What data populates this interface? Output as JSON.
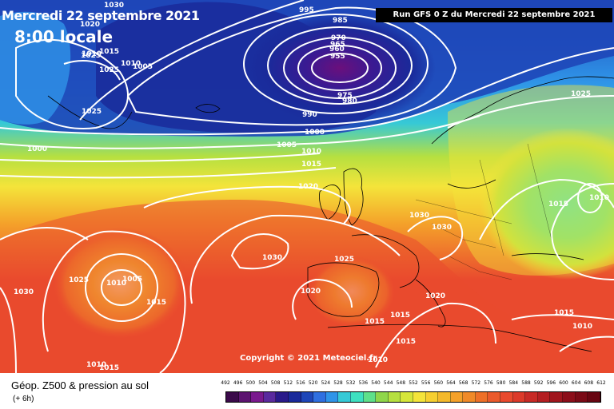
{
  "header": {
    "date_title": "Mercredi 22 septembre 2021",
    "time_title": "8:00 locale",
    "run_info": "Run GFS 0 Z du Mercredi 22 septembre 2021"
  },
  "map": {
    "copyright": "Copyright © 2021 Meteociel.fr",
    "colors": {
      "sea_low": "#1a2a9a",
      "blue": "#2f6fe0",
      "cyan": "#36c9d6",
      "green": "#8fd64a",
      "yellow": "#f4e43a",
      "orange": "#f4a12a",
      "red": "#e94a2e",
      "deep_low": "#6b0f7c",
      "isobar": "#ffffff",
      "coast": "#000000"
    },
    "isobar_labels": [
      {
        "text": "995"
      },
      {
        "text": "985"
      },
      {
        "text": "970"
      },
      {
        "text": "965"
      },
      {
        "text": "960"
      },
      {
        "text": "955"
      },
      {
        "text": "975"
      },
      {
        "text": "980"
      },
      {
        "text": "990"
      },
      {
        "text": "1000"
      },
      {
        "text": "1005"
      },
      {
        "text": "1010"
      },
      {
        "text": "1015"
      },
      {
        "text": "1020"
      },
      {
        "text": "1030"
      },
      {
        "text": "1030"
      },
      {
        "text": "1030"
      },
      {
        "text": "1025"
      },
      {
        "text": "1025"
      },
      {
        "text": "1025"
      },
      {
        "text": "1020"
      },
      {
        "text": "1020"
      },
      {
        "text": "1015"
      },
      {
        "text": "1010"
      },
      {
        "text": "1005"
      },
      {
        "text": "1015"
      },
      {
        "text": "1025"
      },
      {
        "text": "1030"
      },
      {
        "text": "1020"
      },
      {
        "text": "1015"
      },
      {
        "text": "1015"
      },
      {
        "text": "1015"
      },
      {
        "text": "1015"
      },
      {
        "text": "1010"
      },
      {
        "text": "1015"
      },
      {
        "text": "1010"
      },
      {
        "text": "1010"
      },
      {
        "text": "1025"
      },
      {
        "text": "1000"
      },
      {
        "text": "1025"
      },
      {
        "text": "1010"
      },
      {
        "text": "1015"
      },
      {
        "text": "1010"
      },
      {
        "text": "1030"
      },
      {
        "text": "1005"
      },
      {
        "text": "1010"
      }
    ]
  },
  "footer": {
    "title": "Géop. Z500 & pression au sol",
    "subtitle": "(+ 6h)"
  },
  "legend": {
    "values": [
      "492",
      "496",
      "500",
      "504",
      "508",
      "512",
      "516",
      "520",
      "524",
      "528",
      "532",
      "536",
      "540",
      "544",
      "548",
      "552",
      "556",
      "560",
      "564",
      "568",
      "572",
      "576",
      "580",
      "584",
      "588",
      "592",
      "596",
      "600",
      "604",
      "608",
      "612"
    ],
    "colors": [
      "#3b0a4a",
      "#5c1470",
      "#7a1a8e",
      "#5a2a9e",
      "#2a1a8a",
      "#1a2a9a",
      "#1e46b8",
      "#2f6fe0",
      "#2f94e8",
      "#36c9d6",
      "#3ee0c0",
      "#5ee08a",
      "#8fd64a",
      "#b6e040",
      "#d6e63a",
      "#f4e43a",
      "#f6cf30",
      "#f4b92c",
      "#f4a12a",
      "#f08a28",
      "#ee7028",
      "#ea5a2c",
      "#e94a2e",
      "#dc3a2a",
      "#c82a26",
      "#b41e22",
      "#a0161e",
      "#8c0e1a",
      "#7a0a16",
      "#680612"
    ]
  }
}
